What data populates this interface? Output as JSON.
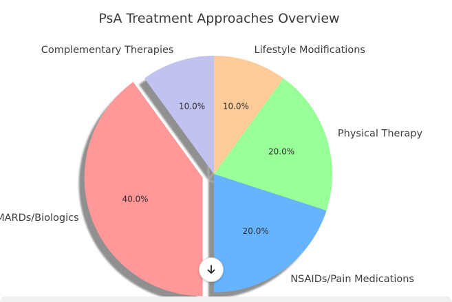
{
  "chart_data": {
    "type": "pie",
    "title": "PsA Treatment Approaches Overview",
    "categories": [
      "Lifestyle Modifications",
      "Physical Therapy",
      "NSAIDs/Pain Medications",
      "DMARDs/Biologics",
      "Complementary Therapies"
    ],
    "values": [
      10,
      20,
      20,
      40,
      10
    ],
    "percent_labels": [
      "10.0%",
      "20.0%",
      "20.0%",
      "40.0%",
      "10.0%"
    ],
    "colors": [
      "#ffcc99",
      "#99ff99",
      "#66b3ff",
      "#ff9999",
      "#c2c2f0"
    ],
    "exploded": [
      "DMARDs/Biologics"
    ],
    "shadow": true,
    "start_angle": 90,
    "direction": "clockwise"
  },
  "ui": {
    "scroll_button_icon": "arrow-down-icon"
  }
}
